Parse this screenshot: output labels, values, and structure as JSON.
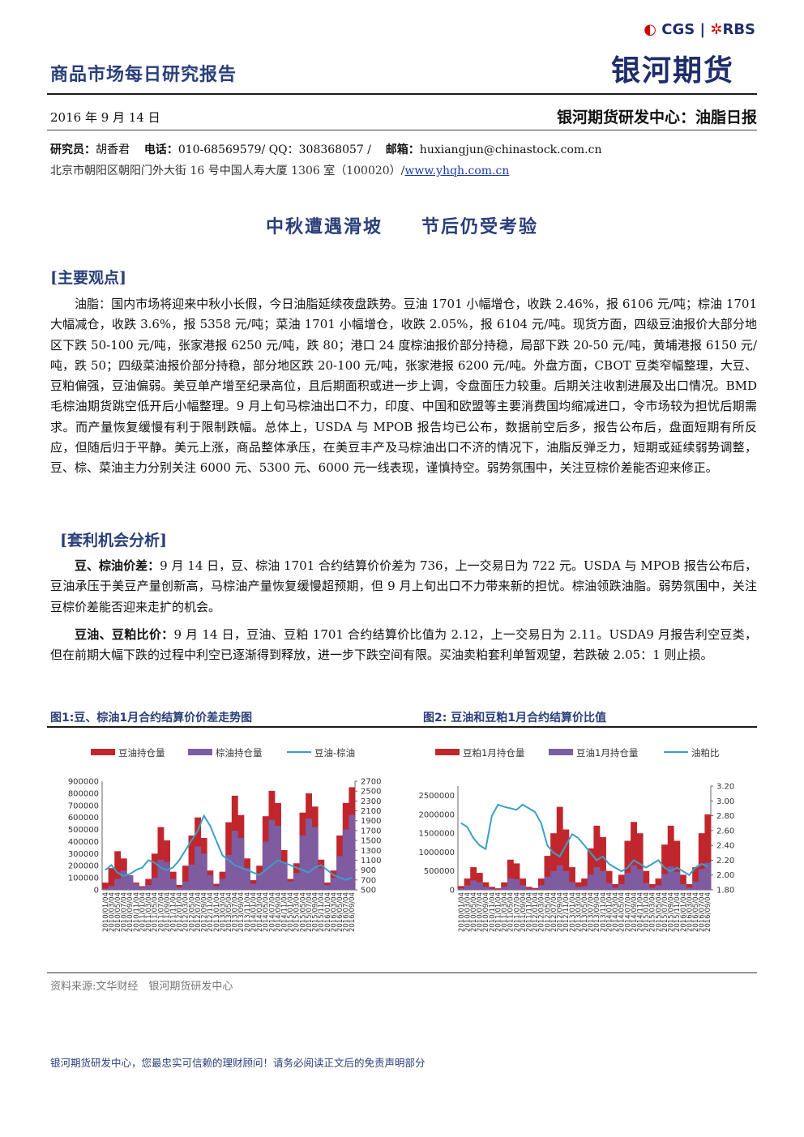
{
  "header": {
    "report_title": "商品市场每日研究报告",
    "logo_top_cgs": "CGS",
    "logo_top_sep": "|",
    "logo_top_rbs": "RBS",
    "logo_bottom": "银河期货",
    "date": "2016 年 9 月 14 日",
    "center_name": "银河期货研发中心：油脂日报",
    "researcher_label": "研究员：",
    "researcher_name": "胡香君",
    "phone_label": "电话：",
    "phone_value": "010-68569579/ QQ：308368057 /",
    "email_label": "邮箱：",
    "email_value": "huxiangjun@chinastock.com.cn",
    "address": "北京市朝阳区朝阳门外大街 16 号中国人寿大厦 1306 室（100020）/",
    "website": "www.yhqh.com.cn"
  },
  "headline": "中秋遭遇滑坡　　节后仍受考验",
  "section1": {
    "heading": "[主要观点]",
    "para": "油脂：国内市场将迎来中秋小长假，今日油脂延续夜盘跌势。豆油 1701 小幅增仓，收跌 2.46%，报 6106 元/吨；棕油 1701 大幅减仓，收跌 3.6%，报 5358 元/吨；菜油 1701 小幅增仓，收跌 2.05%，报 6104 元/吨。现货方面，四级豆油报价大部分地区下跌 50-100 元/吨，张家港报 6250 元/吨，跌 80；港口 24 度棕油报价部分持稳，局部下跌 20-50 元/吨，黄埔港报 6150 元/吨，跌 50；四级菜油报价部分持稳，部分地区跌 20-100 元/吨，张家港报 6200 元/吨。外盘方面，CBOT 豆类窄幅整理，大豆、豆粕偏强，豆油偏弱。美豆单产增至纪录高位，且后期面积或进一步上调，令盘面压力较重。后期关注收割进展及出口情况。BMD 毛棕油期货跳空低开后小幅整理。9 月上旬马棕油出口不力，印度、中国和欧盟等主要消费国均缩减进口，令市场较为担忧后期需求。而产量恢复缓慢有利于限制跌幅。总体上，USDA 与 MPOB 报告均已公布，数据前空后多，报告公布后，盘面短期有所反应，但随后归于平静。美元上涨，商品整体承压，在美豆丰产及马棕油出口不济的情况下，油脂反弹乏力，短期或延续弱势调整，豆、棕、菜油主力分别关注 6000 元、5300 元、6000 元一线表现，谨慎持空。弱势氛围中，关注豆棕价差能否迎来修正。"
  },
  "section2": {
    "heading": "[套利机会分析]",
    "p1_label": "豆、棕油价差：",
    "p1_text": "9 月 14 日，豆、棕油 1701 合约结算价价差为 736，上一交易日为 722 元。USDA 与 MPOB 报告公布后，豆油承压于美豆产量创新高，马棕油产量恢复缓慢超预期，但 9 月上旬出口不力带来新的担忧。棕油领跌油脂。弱势氛围中，关注豆棕价差能否迎来走扩的机会。",
    "p2_label": "豆油、豆粕比价：",
    "p2_text": "9 月 14 日，豆油、豆粕 1701 合约结算价比值为 2.12，上一交易日为 2.11。USDA9 月报告利空豆类，但在前期大幅下跌的过程中利空已逐渐得到释放，进一步下跌空间有限。买油卖粕套利单暂观望，若跌破 2.05：1 则止损。"
  },
  "fig1_title": "图1:豆、棕油1月合约结算价价差走势图",
  "fig2_title": "图2: 豆油和豆粕1月合约结算价比值",
  "source": "资料来源:文华财经　银河期货研发中心",
  "footer": "银河期货研发中心，您最忠实可信赖的理财顾问！请务必阅读正文后的免责声明部分",
  "colors": {
    "bar_red": "#c0272d",
    "bar_purple": "#7b5ea7",
    "line_blue": "#3a9fc8",
    "heading_blue": "#2a3f7a"
  },
  "chart_data": [
    {
      "type": "bar+line",
      "legend": [
        "豆油持仓量",
        "棕油持仓量",
        "豆油-棕油"
      ],
      "y_left_ticks": [
        "900000",
        "800000",
        "700000",
        "600000",
        "500000",
        "400000",
        "300000",
        "200000",
        "100000",
        "0"
      ],
      "y_right_ticks": [
        "2700",
        "2500",
        "2300",
        "2100",
        "1900",
        "1700",
        "1500",
        "1300",
        "1100",
        "900",
        "700",
        "500"
      ],
      "ylim_left": [
        0,
        900000
      ],
      "ylim_right": [
        500,
        2700
      ],
      "x_ticks": [
        "2010/01/04",
        "2010/03/04",
        "2010/05/04",
        "2010/07/04",
        "2010/09/04",
        "2010/11/04",
        "2011/01/04",
        "2011/03/04",
        "2011/05/04",
        "2011/07/04",
        "2011/09/04",
        "2011/11/04",
        "2012/01/04",
        "2012/03/04",
        "2012/05/04",
        "2012/07/04",
        "2012/09/04",
        "2012/11/04",
        "2013/01/04",
        "2013/03/04",
        "2013/05/04",
        "2013/07/04",
        "2013/09/04",
        "2013/11/04",
        "2014/01/04",
        "2014/03/04",
        "2014/05/04",
        "2014/07/04",
        "2014/09/04",
        "2014/11/04",
        "2015/01/04",
        "2015/03/04",
        "2015/05/04",
        "2015/07/04",
        "2015/09/04",
        "2015/11/04",
        "2016/01/04",
        "2016/03/04",
        "2016/05/04",
        "2016/07/04",
        "2016/09/04"
      ],
      "series": [
        {
          "name": "豆油持仓量",
          "values": [
            60000,
            180000,
            320000,
            260000,
            120000,
            60000,
            30000,
            90000,
            300000,
            520000,
            410000,
            150000,
            40000,
            200000,
            450000,
            600000,
            430000,
            160000,
            50000,
            150000,
            560000,
            780000,
            620000,
            260000,
            80000,
            200000,
            610000,
            820000,
            720000,
            330000,
            90000,
            220000,
            640000,
            800000,
            690000,
            250000,
            60000,
            160000,
            450000,
            720000,
            850000
          ]
        },
        {
          "name": "棕油持仓量",
          "values": [
            10000,
            30000,
            90000,
            160000,
            120000,
            50000,
            20000,
            40000,
            100000,
            250000,
            230000,
            90000,
            20000,
            70000,
            210000,
            360000,
            300000,
            120000,
            30000,
            90000,
            290000,
            490000,
            430000,
            180000,
            50000,
            130000,
            400000,
            580000,
            530000,
            230000,
            70000,
            140000,
            450000,
            590000,
            520000,
            180000,
            40000,
            100000,
            280000,
            500000,
            620000
          ]
        },
        {
          "name": "豆油-棕油",
          "values": [
            900,
            1000,
            850,
            780,
            820,
            900,
            950,
            1100,
            1050,
            950,
            900,
            950,
            1100,
            1300,
            1500,
            1700,
            2000,
            1800,
            1500,
            1200,
            1100,
            1000,
            950,
            900,
            850,
            800,
            900,
            1000,
            1100,
            1050,
            1000,
            950,
            900,
            850,
            950,
            1000,
            900,
            800,
            750,
            700,
            750
          ]
        }
      ]
    },
    {
      "type": "bar+line",
      "legend": [
        "豆粕1月持仓量",
        "豆油1月持仓量",
        "油粕比"
      ],
      "y_left_ticks": [
        "2500000",
        "2000000",
        "1500000",
        "1000000",
        "500000",
        "0"
      ],
      "y_right_ticks": [
        "3.20",
        "3.00",
        "2.80",
        "2.60",
        "2.40",
        "2.20",
        "2.00",
        "1.80"
      ],
      "ylim_left": [
        0,
        2750000
      ],
      "ylim_right": [
        1.8,
        3.2
      ],
      "x_ticks": [
        "2010/01/04",
        "2010/03/04",
        "2010/05/04",
        "2010/07/04",
        "2010/09/04",
        "2010/11/04",
        "2011/01/04",
        "2011/03/04",
        "2011/05/04",
        "2011/07/04",
        "2011/09/04",
        "2011/11/04",
        "2012/01/04",
        "2012/03/04",
        "2012/05/04",
        "2012/07/04",
        "2012/09/04",
        "2012/11/04",
        "2013/01/04",
        "2013/03/04",
        "2013/05/04",
        "2013/07/04",
        "2013/09/04",
        "2013/11/04",
        "2014/01/04",
        "2014/03/04",
        "2014/05/04",
        "2014/07/04",
        "2014/09/04",
        "2014/11/04",
        "2015/01/04",
        "2015/03/04",
        "2015/05/04",
        "2015/07/04",
        "2015/09/04",
        "2015/11/04",
        "2016/01/04",
        "2016/03/04",
        "2016/05/04",
        "2016/07/04",
        "2016/09/04"
      ],
      "series": [
        {
          "name": "豆粕1月持仓量",
          "values": [
            100000,
            300000,
            600000,
            450000,
            200000,
            80000,
            40000,
            200000,
            800000,
            700000,
            300000,
            80000,
            50000,
            300000,
            900000,
            1500000,
            2200000,
            1600000,
            600000,
            200000,
            300000,
            1100000,
            1700000,
            1400000,
            500000,
            150000,
            400000,
            1300000,
            1800000,
            1500000,
            500000,
            150000,
            300000,
            1200000,
            1700000,
            1300000,
            400000,
            150000,
            600000,
            1500000,
            2000000
          ]
        },
        {
          "name": "豆油1月持仓量",
          "values": [
            40000,
            120000,
            250000,
            200000,
            80000,
            30000,
            15000,
            80000,
            300000,
            280000,
            120000,
            30000,
            20000,
            120000,
            350000,
            500000,
            650000,
            500000,
            200000,
            80000,
            100000,
            400000,
            600000,
            500000,
            180000,
            60000,
            150000,
            450000,
            650000,
            550000,
            180000,
            60000,
            120000,
            420000,
            620000,
            480000,
            150000,
            60000,
            220000,
            550000,
            720000
          ]
        },
        {
          "name": "油粕比",
          "values": [
            2.7,
            2.65,
            2.5,
            2.4,
            2.35,
            2.8,
            2.95,
            2.92,
            2.9,
            2.88,
            2.95,
            2.9,
            2.85,
            2.7,
            2.4,
            2.3,
            2.25,
            2.4,
            2.55,
            2.5,
            2.4,
            2.3,
            2.2,
            2.25,
            2.15,
            2.1,
            2.05,
            2.1,
            2.2,
            2.15,
            2.1,
            2.15,
            2.2,
            2.1,
            2.05,
            2.1,
            2.05,
            2.0,
            2.1,
            2.15,
            2.12
          ]
        }
      ]
    }
  ]
}
